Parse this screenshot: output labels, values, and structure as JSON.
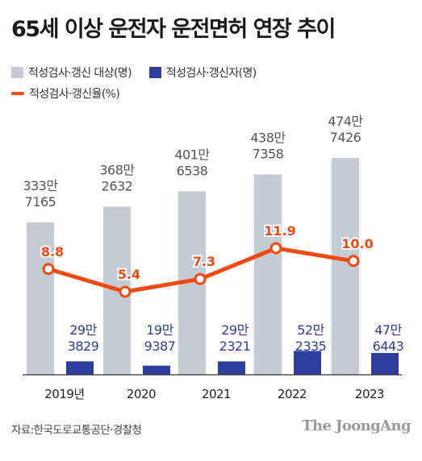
{
  "title": "65세 이상 운전자 운전면허 연장 추이",
  "legend": {
    "target": "적성검사·갱신 대상(명)",
    "renewed": "적성검사·갱신자(명)",
    "rate": "적성검사·갱신율(%)"
  },
  "source": "자료:한국도로교통공단·경찰청",
  "brand": "The JoongAng",
  "colors": {
    "target_bar": "#c3ccd5",
    "renewed_bar": "#2d3e9c",
    "rate_line": "#f04a12",
    "rate_label": "#f04a12",
    "axis": "#333333"
  },
  "chart_data": {
    "type": "bar",
    "categories": [
      "2019년",
      "2020",
      "2021",
      "2022",
      "2023"
    ],
    "series": [
      {
        "name": "적성검사·갱신 대상(명)",
        "values": [
          3337165,
          3682632,
          4016538,
          4387358,
          4747426
        ],
        "labels": [
          [
            "333만",
            "7165"
          ],
          [
            "368만",
            "2632"
          ],
          [
            "401만",
            "6538"
          ],
          [
            "438만",
            "7358"
          ],
          [
            "474만",
            "7426"
          ]
        ]
      },
      {
        "name": "적성검사·갱신자(명)",
        "values": [
          293829,
          199387,
          292321,
          522335,
          476443
        ],
        "labels": [
          [
            "29만",
            "3829"
          ],
          [
            "19만",
            "9387"
          ],
          [
            "29만",
            "2321"
          ],
          [
            "52만",
            "2335"
          ],
          [
            "47만",
            "6443"
          ]
        ]
      },
      {
        "name": "적성검사·갱신율(%)",
        "type": "line",
        "values": [
          8.8,
          5.4,
          7.3,
          11.9,
          10.0
        ],
        "labels": [
          "8.8",
          "5.4",
          "7.3",
          "11.9",
          "10.0"
        ]
      }
    ],
    "xlabel": "",
    "ylabel": "",
    "grid": false,
    "legend_position": "top-left"
  }
}
